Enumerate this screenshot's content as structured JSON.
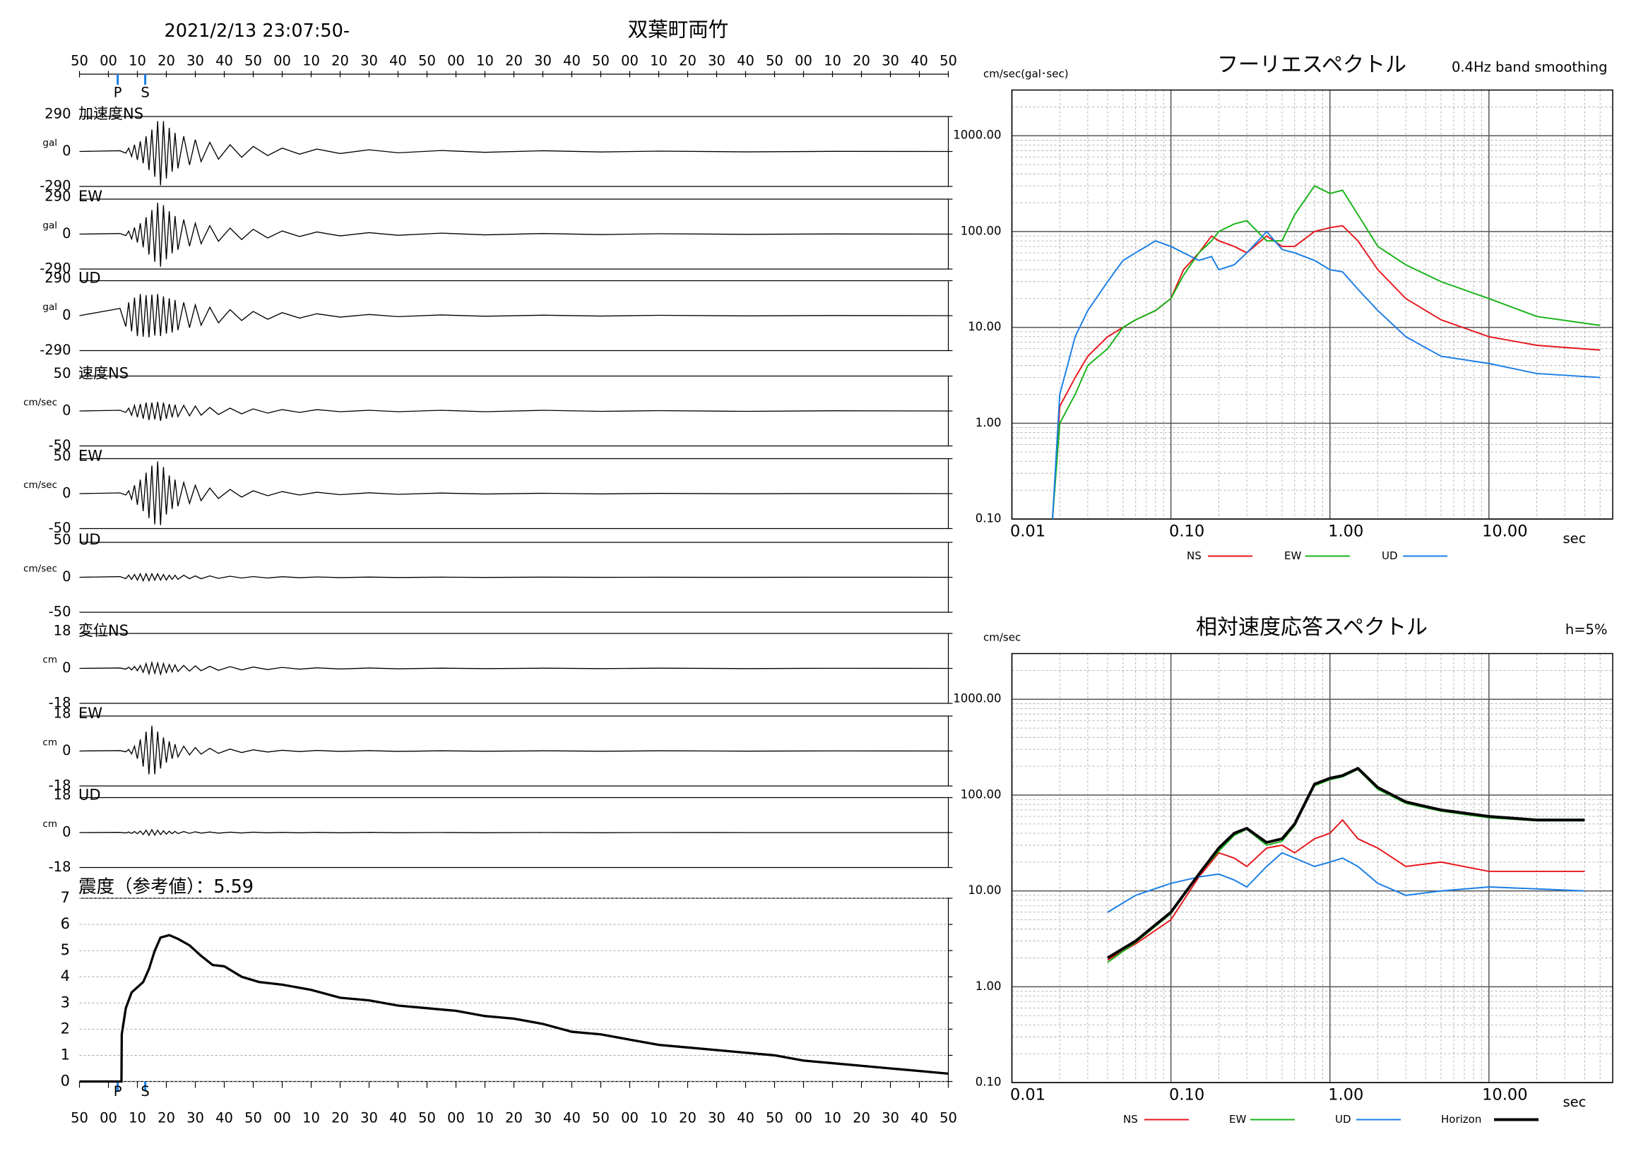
{
  "chart_data": [
    {
      "type": "waveform",
      "title": "双葉町両竹",
      "subtitle": "2021/2/13 23:07:50-",
      "xlim": [
        0,
        300
      ],
      "xticks": [
        {
          "value": 0,
          "label": "50"
        },
        {
          "value": 10,
          "label": "00"
        },
        {
          "value": 20,
          "label": "10"
        },
        {
          "value": 30,
          "label": "20"
        },
        {
          "value": 40,
          "label": "30"
        },
        {
          "value": 50,
          "label": "40"
        },
        {
          "value": 60,
          "label": "50"
        },
        {
          "value": 70,
          "label": "00"
        },
        {
          "value": 80,
          "label": "10"
        },
        {
          "value": 90,
          "label": "20"
        },
        {
          "value": 100,
          "label": "30"
        },
        {
          "value": 110,
          "label": "40"
        },
        {
          "value": 120,
          "label": "50"
        },
        {
          "value": 130,
          "label": "00"
        },
        {
          "value": 140,
          "label": "10"
        },
        {
          "value": 150,
          "label": "20"
        },
        {
          "value": 160,
          "label": "30"
        },
        {
          "value": 170,
          "label": "40"
        },
        {
          "value": 180,
          "label": "50"
        },
        {
          "value": 190,
          "label": "00"
        },
        {
          "value": 200,
          "label": "10"
        },
        {
          "value": 210,
          "label": "20"
        },
        {
          "value": 220,
          "label": "30"
        },
        {
          "value": 230,
          "label": "40"
        },
        {
          "value": 240,
          "label": "50"
        },
        {
          "value": 250,
          "label": "00"
        },
        {
          "value": 260,
          "label": "10"
        },
        {
          "value": 270,
          "label": "20"
        },
        {
          "value": 280,
          "label": "30"
        },
        {
          "value": 290,
          "label": "40"
        },
        {
          "value": 300,
          "label": "50"
        }
      ],
      "markers": [
        {
          "label": "P",
          "x": 13.2
        },
        {
          "label": "S",
          "x": 22.7
        }
      ],
      "marker_color": "#1a7ee6",
      "x": [
        0,
        14,
        16,
        17,
        18,
        19,
        20,
        21,
        22,
        23,
        24,
        25,
        26,
        27,
        28,
        29,
        30,
        31,
        32,
        33,
        34,
        36,
        38,
        40,
        42,
        45,
        48,
        52,
        56,
        60,
        65,
        70,
        76,
        82,
        90,
        100,
        110,
        125,
        140,
        160,
        180,
        200,
        230,
        260,
        300
      ],
      "panels": [
        {
          "label": "加速度NS",
          "unit": "gal",
          "ylim": [
            -290,
            290
          ],
          "yticks": [
            290,
            0,
            -290
          ],
          "values": [
            0,
            6,
            -14,
            28,
            -42,
            56,
            -70,
            84,
            -98,
            126,
            -154,
            182,
            -210,
            252,
            -280,
            252,
            -224,
            196,
            -168,
            154,
            -140,
            126,
            -112,
            98,
            -84,
            76,
            -64,
            56,
            -48,
            42,
            -34,
            28,
            -22,
            20,
            -17,
            14,
            -11,
            8,
            -7,
            6,
            -4,
            3,
            -3,
            1,
            0
          ]
        },
        {
          "label": "EW",
          "unit": "gal",
          "ylim": [
            -290,
            290
          ],
          "yticks": [
            290,
            0,
            -290
          ],
          "values": [
            0,
            5,
            -12,
            25,
            -40,
            55,
            -70,
            90,
            -110,
            140,
            -170,
            200,
            -230,
            260,
            -270,
            240,
            -210,
            190,
            -160,
            150,
            -130,
            120,
            -100,
            90,
            -80,
            70,
            -60,
            50,
            -45,
            40,
            -32,
            26,
            -20,
            18,
            -15,
            12,
            -10,
            8,
            -6,
            5,
            -4,
            3,
            -2,
            1,
            0
          ]
        },
        {
          "label": "UD",
          "unit": "gal",
          "ylim": [
            -290,
            290
          ],
          "yticks": [
            290,
            0,
            -290
          ],
          "values": [
            0,
            60,
            -90,
            110,
            -130,
            150,
            -170,
            180,
            -175,
            170,
            -180,
            175,
            -165,
            180,
            -170,
            160,
            -150,
            145,
            -140,
            130,
            -120,
            110,
            -100,
            90,
            -80,
            70,
            -60,
            50,
            -40,
            35,
            -30,
            25,
            -20,
            16,
            -12,
            10,
            -8,
            6,
            -5,
            4,
            -3,
            3,
            -2,
            1,
            0
          ]
        },
        {
          "label": "速度NS",
          "unit": "cm/sec",
          "ylim": [
            -50,
            50
          ],
          "yticks": [
            50,
            0,
            -50
          ],
          "values": [
            0,
            1,
            -2,
            4,
            -6,
            8,
            -9,
            10,
            -11,
            12,
            -13,
            12,
            -12,
            13,
            -14,
            12,
            -11,
            10,
            -9,
            9,
            -8,
            8,
            -7,
            7,
            -6,
            5,
            -5,
            4,
            -4,
            3,
            -3,
            2,
            -2,
            2,
            -1,
            1,
            -1,
            1,
            -1,
            1,
            -0.5,
            0.5,
            -0.5,
            0.3,
            0
          ]
        },
        {
          "label": "EW",
          "unit": "cm/sec",
          "ylim": [
            -50,
            50
          ],
          "yticks": [
            50,
            0,
            -50
          ],
          "values": [
            0,
            1,
            -2,
            4,
            -8,
            12,
            -16,
            20,
            -25,
            30,
            -35,
            40,
            -44,
            46,
            -45,
            38,
            -30,
            26,
            -22,
            20,
            -18,
            16,
            -14,
            12,
            -10,
            8,
            -7,
            6,
            -5,
            4,
            -3,
            3,
            -2,
            2,
            -1.5,
            1.2,
            -1,
            0.8,
            -0.6,
            0.5,
            -0.4,
            0.3,
            -0.2,
            0.1,
            0
          ]
        },
        {
          "label": "UD",
          "unit": "cm/sec",
          "ylim": [
            -50,
            50
          ],
          "yticks": [
            50,
            0,
            -50
          ],
          "values": [
            0,
            1,
            -2,
            3,
            -3,
            4,
            -4,
            5,
            -5,
            5,
            -5,
            5,
            -4,
            5,
            -4,
            4,
            -4,
            3,
            -3,
            3,
            -3,
            3,
            -2,
            2,
            -2,
            2,
            -1.5,
            1.5,
            -1,
            1,
            -1,
            0.8,
            -0.6,
            0.5,
            -0.4,
            0.3,
            -0.3,
            0.2,
            -0.2,
            0.2,
            -0.1,
            0.1,
            -0.1,
            0.1,
            0
          ]
        },
        {
          "label": "変位NS",
          "unit": "cm",
          "ylim": [
            -18,
            18
          ],
          "yticks": [
            18,
            0,
            -18
          ],
          "values": [
            0,
            0.2,
            -0.4,
            0.6,
            -0.8,
            1,
            -1.2,
            1.5,
            -2,
            2.5,
            -2.8,
            3,
            -2.5,
            2.8,
            -3,
            2.5,
            -2.2,
            2,
            -1.8,
            1.8,
            -1.6,
            1.5,
            -1.4,
            1.3,
            -1.2,
            1.1,
            -1,
            0.9,
            -0.8,
            0.7,
            -0.6,
            0.5,
            -0.4,
            0.3,
            -0.3,
            0.2,
            -0.2,
            0.1,
            -0.1,
            0.1,
            -0.1,
            0.1,
            -0.1,
            0.05,
            0
          ]
        },
        {
          "label": "EW",
          "unit": "cm",
          "ylim": [
            -18,
            18
          ],
          "yticks": [
            18,
            0,
            -18
          ],
          "values": [
            0,
            0.2,
            -0.4,
            0.8,
            -1.5,
            2.5,
            -4,
            6,
            -8,
            10,
            -12,
            13,
            -12,
            10,
            -9,
            7,
            -6,
            5,
            -4,
            3.5,
            -3,
            2.5,
            -2,
            1.8,
            -1.6,
            1.4,
            -1.2,
            1,
            -0.8,
            0.6,
            -0.5,
            0.4,
            -0.3,
            0.3,
            -0.2,
            0.2,
            -0.2,
            0.1,
            -0.1,
            0.1,
            -0.1,
            0.1,
            -0.05,
            0.05,
            0
          ]
        },
        {
          "label": "UD",
          "unit": "cm",
          "ylim": [
            -18,
            18
          ],
          "yticks": [
            18,
            0,
            -18
          ],
          "values": [
            0,
            0.1,
            -0.2,
            0.3,
            -0.4,
            0.5,
            -0.6,
            0.8,
            -1,
            1.2,
            -1.4,
            1.5,
            -1.3,
            1.2,
            -1,
            0.9,
            -0.8,
            0.7,
            -0.6,
            0.6,
            -0.5,
            0.5,
            -0.4,
            0.4,
            -0.3,
            0.3,
            -0.3,
            0.2,
            -0.2,
            0.2,
            -0.1,
            0.1,
            -0.1,
            0.1,
            -0.1,
            0.1,
            -0.05,
            0.05,
            -0.05,
            0.05,
            -0.05,
            0.05,
            0,
            0,
            0
          ]
        }
      ]
    },
    {
      "type": "line",
      "title": "震度（参考値）：5.59",
      "xlim": [
        0,
        300
      ],
      "ylim": [
        0,
        7
      ],
      "yticks": [
        0,
        1,
        2,
        3,
        4,
        5,
        6,
        7
      ],
      "grid": true,
      "color": "#000000",
      "x": [
        0,
        14.5,
        14.6,
        16,
        18,
        20,
        22,
        24,
        26,
        28,
        31,
        34,
        38,
        42,
        46,
        50,
        56,
        62,
        70,
        80,
        90,
        100,
        110,
        120,
        130,
        140,
        150,
        160,
        170,
        180,
        190,
        200,
        210,
        220,
        230,
        240,
        250,
        260,
        270,
        280,
        290,
        300
      ],
      "values": [
        0,
        0,
        1.8,
        2.8,
        3.4,
        3.6,
        3.8,
        4.3,
        5.0,
        5.5,
        5.59,
        5.45,
        5.2,
        4.8,
        4.45,
        4.4,
        4.0,
        3.8,
        3.7,
        3.5,
        3.2,
        3.1,
        2.9,
        2.8,
        2.7,
        2.5,
        2.4,
        2.2,
        1.9,
        1.8,
        1.6,
        1.4,
        1.3,
        1.2,
        1.1,
        1.0,
        0.8,
        0.7,
        0.6,
        0.5,
        0.4,
        0.3
      ]
    },
    {
      "type": "line",
      "title": "フーリエスペクトル",
      "subtitle": "0.4Hz band smoothing",
      "y_label": "cm/sec(gal･sec)",
      "x_label": "sec",
      "log_x": true,
      "log_y": true,
      "grid": true,
      "legend": "bottom",
      "xlim": [
        0.01,
        60
      ],
      "ylim": [
        0.1,
        3000
      ],
      "xticks": [
        0.01,
        {
          "value": 0.1,
          "label": "0.10"
        },
        {
          "value": 1,
          "label": "1.00"
        },
        {
          "value": 10,
          "label": "10.00"
        }
      ],
      "yticks": [
        {
          "value": 0.1,
          "label": "0.10"
        },
        {
          "value": 1,
          "label": "1.00"
        },
        {
          "value": 10,
          "label": "10.00"
        },
        {
          "value": 100,
          "label": "100.00"
        },
        {
          "value": 1000,
          "label": "1000.00"
        }
      ],
      "x": [
        0.018,
        0.02,
        0.025,
        0.03,
        0.04,
        0.05,
        0.06,
        0.08,
        0.1,
        0.12,
        0.15,
        0.18,
        0.2,
        0.25,
        0.3,
        0.4,
        0.5,
        0.6,
        0.8,
        1.0,
        1.2,
        1.5,
        2,
        3,
        5,
        10,
        20,
        50
      ],
      "series": [
        {
          "name": "NS",
          "color": "#e8161b",
          "values": [
            0.1,
            1.5,
            3,
            5,
            8,
            10,
            12,
            15,
            20,
            40,
            60,
            90,
            80,
            70,
            60,
            90,
            70,
            70,
            100,
            110,
            115,
            80,
            40,
            20,
            12,
            8,
            6.5,
            5.8
          ]
        },
        {
          "name": "EW",
          "color": "#18b418",
          "values": [
            0.1,
            1,
            2,
            4,
            6,
            10,
            12,
            15,
            20,
            35,
            60,
            80,
            100,
            120,
            130,
            80,
            80,
            150,
            300,
            250,
            270,
            150,
            70,
            45,
            30,
            20,
            13,
            10.5
          ]
        },
        {
          "name": "UD",
          "color": "#1a7ee6",
          "values": [
            0.1,
            2,
            8,
            15,
            30,
            50,
            60,
            80,
            70,
            60,
            50,
            55,
            40,
            45,
            60,
            100,
            65,
            60,
            50,
            40,
            38,
            25,
            15,
            8,
            5,
            4.2,
            3.3,
            3.0
          ]
        }
      ]
    },
    {
      "type": "line",
      "title": "相対速度応答スペクトル",
      "subtitle": "h=5%",
      "y_label": "cm/sec",
      "x_label": "sec",
      "log_x": true,
      "log_y": true,
      "grid": true,
      "legend": "bottom",
      "xlim": [
        0.01,
        60
      ],
      "ylim": [
        0.1,
        3000
      ],
      "xticks": [
        0.01,
        {
          "value": 0.1,
          "label": "0.10"
        },
        {
          "value": 1,
          "label": "1.00"
        },
        {
          "value": 10,
          "label": "10.00"
        }
      ],
      "yticks": [
        {
          "value": 0.1,
          "label": "0.10"
        },
        {
          "value": 1,
          "label": "1.00"
        },
        {
          "value": 10,
          "label": "10.00"
        },
        {
          "value": 100,
          "label": "100.00"
        },
        {
          "value": 1000,
          "label": "1000.00"
        }
      ],
      "x": [
        0.04,
        0.06,
        0.1,
        0.15,
        0.2,
        0.25,
        0.3,
        0.4,
        0.5,
        0.6,
        0.8,
        1.0,
        1.2,
        1.5,
        2,
        3,
        5,
        10,
        20,
        40
      ],
      "series": [
        {
          "name": "NS",
          "color": "#e8161b",
          "values": [
            1.9,
            2.8,
            5,
            14,
            25,
            22,
            18,
            28,
            30,
            25,
            35,
            40,
            55,
            35,
            28,
            18,
            20,
            16,
            16,
            16
          ]
        },
        {
          "name": "EW",
          "color": "#18b418",
          "values": [
            1.8,
            2.9,
            5.8,
            15,
            26,
            38,
            44,
            30,
            33,
            48,
            125,
            145,
            155,
            185,
            115,
            82,
            68,
            58,
            54,
            54
          ]
        },
        {
          "name": "UD",
          "color": "#1a7ee6",
          "values": [
            6,
            9,
            12,
            14,
            15,
            13,
            11,
            18,
            25,
            22,
            18,
            20,
            22,
            18,
            12,
            9,
            10,
            11,
            10.5,
            10
          ]
        },
        {
          "name": "Horizon",
          "color": "#000000",
          "values": [
            2,
            3,
            6,
            15,
            28,
            40,
            45,
            32,
            35,
            50,
            130,
            150,
            160,
            190,
            120,
            85,
            70,
            60,
            55,
            55
          ]
        }
      ]
    }
  ]
}
